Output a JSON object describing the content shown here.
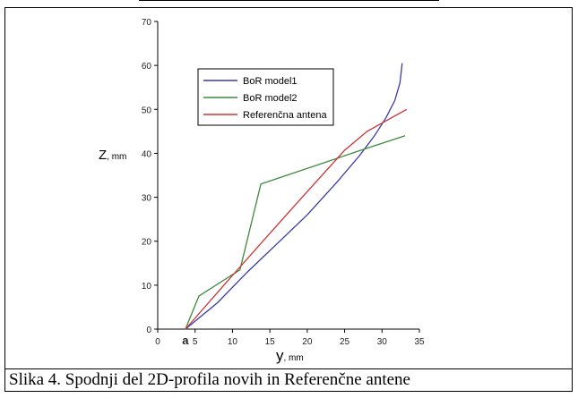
{
  "caption": "Slika 4. Spodnji del 2D-profila novih in Referenčne antene",
  "chart_data": {
    "type": "line",
    "title": "",
    "xlabel_main": "y",
    "xlabel_unit": ", mm",
    "ylabel_main": "Z",
    "ylabel_unit": ", mm",
    "xlim": [
      0,
      35
    ],
    "ylim": [
      0,
      70
    ],
    "x_ticks": [
      {
        "v": 0,
        "t": "0"
      },
      {
        "v": 3.7,
        "t": "a"
      },
      {
        "v": 5,
        "t": "5"
      },
      {
        "v": 10,
        "t": "10"
      },
      {
        "v": 15,
        "t": "15"
      },
      {
        "v": 20,
        "t": "20"
      },
      {
        "v": 25,
        "t": "25"
      },
      {
        "v": 30,
        "t": "30"
      },
      {
        "v": 35,
        "t": "35"
      }
    ],
    "y_ticks": [
      0,
      10,
      20,
      30,
      40,
      50,
      60,
      70
    ],
    "legend_position": "top-left",
    "series": [
      {
        "name": "BoR model1",
        "color": "#3a3aa8",
        "points": [
          [
            3.7,
            0
          ],
          [
            8,
            6
          ],
          [
            12,
            13
          ],
          [
            16,
            19.5
          ],
          [
            20,
            26
          ],
          [
            24,
            33.5
          ],
          [
            27,
            39.5
          ],
          [
            29,
            44
          ],
          [
            30.5,
            48
          ],
          [
            31.7,
            52
          ],
          [
            32.4,
            56
          ],
          [
            32.7,
            60.5
          ]
        ]
      },
      {
        "name": "BoR model2",
        "color": "#3f8a3f",
        "points": [
          [
            3.7,
            0
          ],
          [
            5.5,
            7.5
          ],
          [
            11,
            13.5
          ],
          [
            13.8,
            33
          ],
          [
            27.7,
            41
          ],
          [
            33.1,
            44
          ]
        ]
      },
      {
        "name": "Referenčna antena",
        "color": "#cc3333",
        "points": [
          [
            3.7,
            0
          ],
          [
            10,
            12.2
          ],
          [
            15,
            21.8
          ],
          [
            20,
            31.3
          ],
          [
            25,
            40.7
          ],
          [
            28,
            45
          ],
          [
            33.3,
            50
          ]
        ]
      }
    ]
  }
}
